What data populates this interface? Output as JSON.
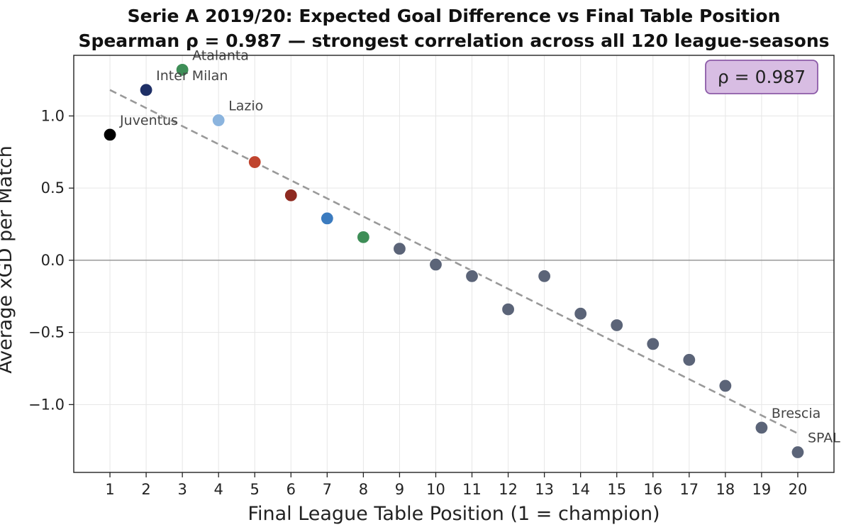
{
  "chart_data": {
    "type": "scatter",
    "title": "Serie A 2019/20: Expected Goal Difference vs Final Table Position",
    "subtitle": "Spearman ρ = 0.987 — strongest correlation across all 120 league-seasons",
    "xlabel": "Final League Table Position  (1 = champion)",
    "ylabel": "Average xGD per Match",
    "xlim": [
      0,
      21
    ],
    "ylim": [
      -1.47,
      1.42
    ],
    "xticks": [
      1,
      2,
      3,
      4,
      5,
      6,
      7,
      8,
      9,
      10,
      11,
      12,
      13,
      14,
      15,
      16,
      17,
      18,
      19,
      20
    ],
    "yticks": [
      -1.0,
      -0.5,
      0.0,
      0.5,
      1.0
    ],
    "ytick_labels": [
      "−1.0",
      "−0.5",
      "0.0",
      "0.5",
      "1.0"
    ],
    "grid": true,
    "zero_line": true,
    "trend_line": {
      "style": "dashed",
      "color": "#999999",
      "x": [
        1,
        20
      ],
      "y": [
        1.18,
        -1.2
      ]
    },
    "annotation_box": {
      "text": "ρ = 0.987",
      "placement": "top-right",
      "fill": "#d8bde3",
      "border": "#8c5ba8"
    },
    "points": [
      {
        "x": 1,
        "y": 0.87,
        "label": "Juventus",
        "color": "#000000"
      },
      {
        "x": 2,
        "y": 1.18,
        "label": "Inter Milan",
        "color": "#1e2f66"
      },
      {
        "x": 3,
        "y": 1.32,
        "label": "Atalanta",
        "color": "#3e8e57"
      },
      {
        "x": 4,
        "y": 0.97,
        "label": "Lazio",
        "color": "#8bb4de"
      },
      {
        "x": 5,
        "y": 0.68,
        "label": "",
        "color": "#c0442e"
      },
      {
        "x": 6,
        "y": 0.45,
        "label": "",
        "color": "#8e2a20"
      },
      {
        "x": 7,
        "y": 0.29,
        "label": "",
        "color": "#3b7bbf"
      },
      {
        "x": 8,
        "y": 0.16,
        "label": "",
        "color": "#3e8e57"
      },
      {
        "x": 9,
        "y": 0.08,
        "label": "",
        "color": "#5b6478"
      },
      {
        "x": 10,
        "y": -0.03,
        "label": "",
        "color": "#5b6478"
      },
      {
        "x": 11,
        "y": -0.11,
        "label": "",
        "color": "#5b6478"
      },
      {
        "x": 12,
        "y": -0.34,
        "label": "",
        "color": "#5b6478"
      },
      {
        "x": 13,
        "y": -0.11,
        "label": "",
        "color": "#5b6478"
      },
      {
        "x": 14,
        "y": -0.37,
        "label": "",
        "color": "#5b6478"
      },
      {
        "x": 15,
        "y": -0.45,
        "label": "",
        "color": "#5b6478"
      },
      {
        "x": 16,
        "y": -0.58,
        "label": "",
        "color": "#5b6478"
      },
      {
        "x": 17,
        "y": -0.69,
        "label": "",
        "color": "#5b6478"
      },
      {
        "x": 18,
        "y": -0.87,
        "label": "",
        "color": "#5b6478"
      },
      {
        "x": 19,
        "y": -1.16,
        "label": "Brescia",
        "color": "#5b6478"
      },
      {
        "x": 20,
        "y": -1.33,
        "label": "SPAL",
        "color": "#5b6478"
      }
    ]
  }
}
